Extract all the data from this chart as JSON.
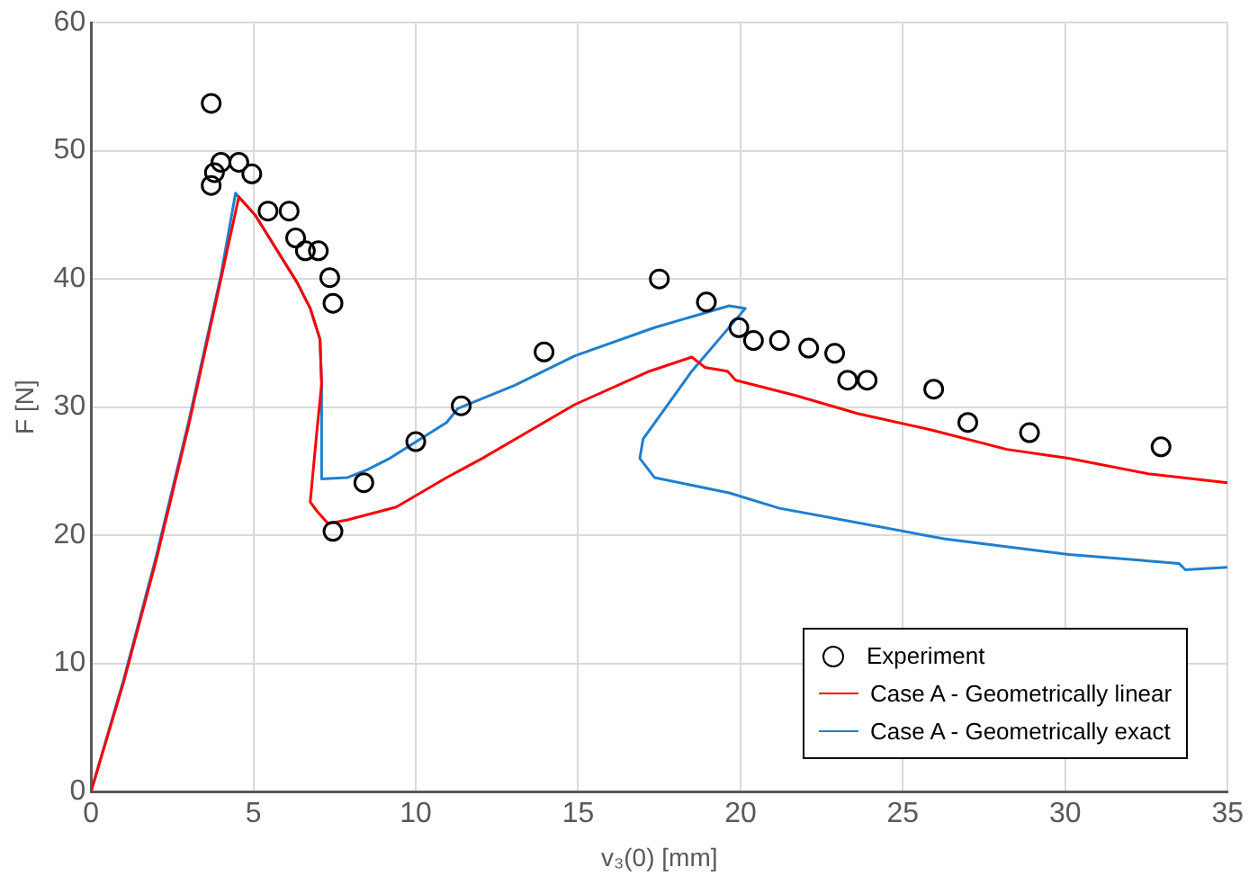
{
  "chart_data": {
    "type": "line",
    "xlabel": "v₃(0) [mm]",
    "ylabel": "F [N]",
    "xlim": [
      0,
      35
    ],
    "xticks": [
      0,
      5,
      10,
      15,
      20,
      25,
      30,
      35
    ],
    "ylim": [
      0,
      60
    ],
    "yticks": [
      0,
      10,
      20,
      30,
      40,
      50,
      60
    ],
    "grid": true,
    "legend": "bottom right",
    "series": [
      {
        "name": "Experiment",
        "type": "scatter",
        "marker": "circle",
        "color": "#000000",
        "x": [
          3.7,
          3.8,
          3.7,
          4.0,
          4.55,
          4.95,
          5.45,
          6.1,
          6.3,
          6.6,
          7.0,
          7.35,
          7.45,
          8.4,
          7.45,
          10.0,
          11.4,
          13.95,
          17.5,
          18.95,
          19.95,
          20.4,
          21.2,
          22.1,
          22.9,
          23.3,
          23.9,
          25.95,
          27.0,
          28.9,
          32.95
        ],
        "values": [
          53.7,
          48.3,
          47.3,
          49.1,
          49.1,
          48.2,
          45.3,
          45.3,
          43.2,
          42.2,
          42.2,
          40.1,
          38.1,
          24.1,
          20.3,
          27.3,
          30.1,
          34.3,
          40.0,
          38.2,
          36.2,
          35.2,
          35.2,
          34.6,
          34.2,
          32.1,
          32.1,
          31.4,
          28.8,
          28.0,
          26.9
        ]
      },
      {
        "name": "Case A - Geometrically linear",
        "color": "#ff0000",
        "x": [
          0,
          1,
          2,
          3,
          4,
          4.55,
          5.05,
          6.35,
          6.75,
          7.05,
          7.1,
          6.95,
          6.75,
          6.95,
          7.3,
          7.9,
          9.4,
          10.95,
          12.05,
          14.9,
          17.2,
          18.5,
          18.9,
          19.6,
          19.85,
          21.7,
          23.6,
          25.9,
          28.2,
          30.1,
          32.55,
          35
        ],
        "values": [
          0,
          8.5,
          18,
          28.5,
          40,
          46.4,
          45,
          39.7,
          37.7,
          35.3,
          31.8,
          28,
          22.6,
          21.9,
          20.9,
          21.2,
          22.2,
          24.5,
          26,
          30.2,
          32.8,
          33.9,
          33.1,
          32.8,
          32.1,
          30.9,
          29.5,
          28.2,
          26.7,
          26,
          24.8,
          24.1
        ]
      },
      {
        "name": "Case A - Geometrically exact",
        "color": "#1f7fcf",
        "x": [
          0,
          1,
          2,
          3,
          4,
          4.45,
          5.05,
          6.35,
          6.75,
          7.05,
          7.1,
          7.1,
          7.9,
          8.5,
          9.2,
          10.95,
          11.3,
          13.05,
          14.9,
          17.35,
          19.65,
          20.15,
          18.5,
          17,
          16.9,
          17.35,
          19.65,
          21.2,
          22.5,
          26.3,
          30.1,
          33.5,
          33.7,
          35
        ],
        "values": [
          0,
          8.7,
          18.3,
          28.8,
          40.3,
          46.7,
          45,
          39.7,
          37.7,
          35.3,
          31.8,
          24.4,
          24.5,
          25.1,
          26,
          28.8,
          29.9,
          31.7,
          34,
          36.2,
          37.9,
          37.7,
          32.8,
          27.5,
          26,
          24.5,
          23.3,
          22.1,
          21.5,
          19.7,
          18.5,
          17.8,
          17.3,
          17.5
        ]
      }
    ]
  }
}
